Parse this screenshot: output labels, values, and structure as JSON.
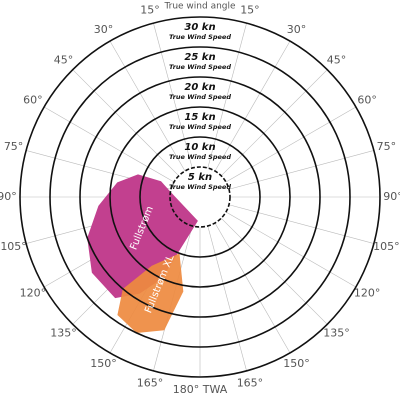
{
  "chart_data": {
    "type": "polar",
    "title": "True wind angle",
    "rlim": [
      0,
      30
    ],
    "rticks": [
      {
        "value": 5,
        "label": "5 kn"
      },
      {
        "value": 10,
        "label": "10 kn"
      },
      {
        "value": 15,
        "label": "15 kn"
      },
      {
        "value": 20,
        "label": "20 kn"
      },
      {
        "value": 25,
        "label": "25 kn"
      },
      {
        "value": 30,
        "label": "30 kn"
      }
    ],
    "rtick_caption": "True Wind Speed",
    "angle_ticks": [
      {
        "value": 15,
        "label": "15°"
      },
      {
        "value": 30,
        "label": "30°"
      },
      {
        "value": 45,
        "label": "45°"
      },
      {
        "value": 60,
        "label": "60°"
      },
      {
        "value": 75,
        "label": "75°"
      },
      {
        "value": 90,
        "label": "90°"
      },
      {
        "value": 105,
        "label": "105°"
      },
      {
        "value": 120,
        "label": "120°"
      },
      {
        "value": 135,
        "label": "135°"
      },
      {
        "value": 150,
        "label": "150°"
      },
      {
        "value": 165,
        "label": "165°"
      },
      {
        "value": 180,
        "label": "180° TWA"
      }
    ],
    "series": [
      {
        "name": "Fullstrøm",
        "color": "#c2408f",
        "points": [
          [
            70,
            11
          ],
          [
            68,
            7
          ],
          [
            80,
            5
          ],
          [
            175,
            4
          ],
          [
            155,
            15
          ],
          [
            148,
            19
          ],
          [
            140,
            22
          ],
          [
            125,
            22
          ],
          [
            110,
            20
          ],
          [
            95,
            17
          ],
          [
            80,
            14
          ]
        ]
      },
      {
        "name": "Fullstrøm XL",
        "color": "#ee8a3f",
        "points": [
          [
            160,
            10
          ],
          [
            170,
            16
          ],
          [
            165,
            23
          ],
          [
            155,
            25
          ],
          [
            145,
            24
          ],
          [
            140,
            20
          ],
          [
            145,
            14
          ]
        ]
      }
    ]
  }
}
